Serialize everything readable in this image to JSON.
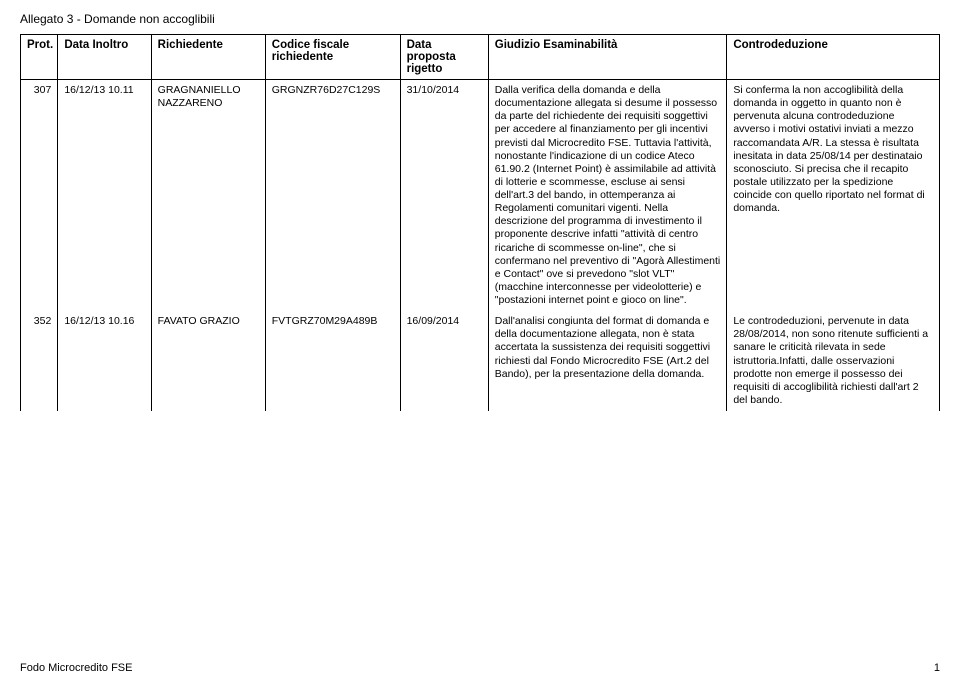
{
  "doc_title": "Allegato 3 - Domande non accoglibili",
  "columns": {
    "c0": "Prot.",
    "c1": "Data Inoltro",
    "c2": "Richiedente",
    "c3": "Codice fiscale richiedente",
    "c4": "Data proposta rigetto",
    "c5": "Giudizio Esaminabilità",
    "c6": "Controdeduzione"
  },
  "rows": [
    {
      "prot": "307",
      "data_inoltro": "16/12/13 10.11",
      "richiedente": "GRAGNANIELLO NAZZARENO",
      "codice": "GRGNZR76D27C129S",
      "data_proposta": "31/10/2014",
      "giudizio": "Dalla verifica della domanda e della documentazione allegata si desume il possesso da parte del richiedente dei requisiti soggettivi per accedere al finanziamento per gli incentivi previsti dal Microcredito FSE. Tuttavia l'attività, nonostante l'indicazione di un codice Ateco 61.90.2 (Internet Point) è assimilabile ad attività di lotterie e scommesse, escluse ai sensi dell'art.3 del bando, in ottemperanza ai Regolamenti comunitari vigenti. Nella descrizione del programma di investimento il proponente descrive infatti \"attività di centro ricariche di scommesse on-line\", che si confermano nel preventivo di \"Agorà Allestimenti e Contact\" ove si prevedono \"slot VLT\" (macchine interconnesse per videolotterie) e \"postazioni internet point e gioco on line\".",
      "controdeduzione": "Si conferma la non accoglibilità della domanda in oggetto in quanto non è pervenuta alcuna controdeduzione avverso i motivi ostativi inviati a mezzo raccomandata A/R. La stessa è risultata inesitata in data 25/08/14 per destinataio sconosciuto. Si precisa che il recapito postale utilizzato per la spedizione coincide con quello riportato nel format di domanda."
    },
    {
      "prot": "352",
      "data_inoltro": "16/12/13 10.16",
      "richiedente": "FAVATO GRAZIO",
      "codice": "FVTGRZ70M29A489B",
      "data_proposta": "16/09/2014",
      "giudizio": "Dall'analisi congiunta del format di domanda e della documentazione allegata, non è stata accertata la sussistenza dei requisiti soggettivi richiesti dal Fondo Microcredito FSE (Art.2 del Bando), per la presentazione della domanda.",
      "controdeduzione": "Le controdeduzioni, pervenute in data 28/08/2014, non sono ritenute sufficienti a sanare le criticità rilevata in sede istruttoria.Infatti, dalle osservazioni prodotte non emerge il possesso dei requisiti di accoglibilità richiesti dall'art 2 del bando."
    }
  ],
  "footer_left": "Fodo Microcredito FSE",
  "footer_page": "1"
}
